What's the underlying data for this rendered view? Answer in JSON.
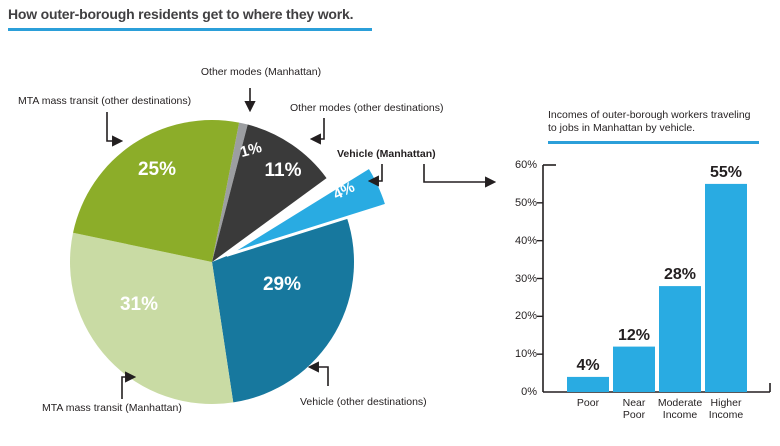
{
  "page_title": "How outer-borough residents get to where they work.",
  "colors": {
    "accent_blue": "#2B9FD9",
    "title_text": "#414042",
    "label_text": "#231F20",
    "arrow": "#231F20",
    "pie_gray_sliver": "#9C9EA1",
    "pie_dark": "#3A3A3A",
    "pie_light_blue": "#29ABE2",
    "pie_teal": "#17789E",
    "pie_light_green": "#C9DBA4",
    "pie_olive_green": "#8CAD29",
    "bar_fill": "#29ABE2"
  },
  "chart_data": [
    {
      "type": "pie",
      "title": "How outer-borough residents get to where they work.",
      "start_angle_deg": 11,
      "slices": [
        {
          "label": "Other modes (Manhattan)",
          "value": 1,
          "display": "1%",
          "color": "#9C9EA1",
          "exploded": false
        },
        {
          "label": "Other modes (other destinations)",
          "value": 11,
          "display": "11%",
          "color": "#3A3A3A",
          "exploded": false
        },
        {
          "label": "Vehicle (Manhattan)",
          "value": 4,
          "display": "4%",
          "color": "#29ABE2",
          "exploded": true
        },
        {
          "label": "Vehicle (other destinations)",
          "value": 29,
          "display": "29%",
          "color": "#17789E",
          "exploded": false
        },
        {
          "label": "MTA mass transit (Manhattan)",
          "value": 31,
          "display": "31%",
          "color": "#C9DBA4",
          "exploded": false
        },
        {
          "label": "MTA mass transit (other destinations)",
          "value": 25,
          "display": "25%",
          "color": "#8CAD29",
          "exploded": false
        }
      ]
    },
    {
      "type": "bar",
      "title": "Incomes of outer-borough workers traveling to jobs in Manhattan by vehicle.",
      "title_lines": [
        "Incomes of outer-borough workers traveling",
        "to jobs in Manhattan by vehicle."
      ],
      "categories": [
        "Poor",
        "Near Poor",
        "Moderate Income",
        "Higher Income"
      ],
      "category_lines": [
        [
          "Poor"
        ],
        [
          "Near",
          "Poor"
        ],
        [
          "Moderate",
          "Income"
        ],
        [
          "Higher",
          "Income"
        ]
      ],
      "values": [
        4,
        12,
        28,
        55
      ],
      "value_labels": [
        "4%",
        "12%",
        "28%",
        "55%"
      ],
      "yticks": [
        "60%",
        "50%",
        "40%",
        "30%",
        "20%",
        "10%",
        "0%"
      ],
      "ylim": [
        0,
        60
      ],
      "grid": false,
      "bar_color": "#29ABE2"
    }
  ]
}
